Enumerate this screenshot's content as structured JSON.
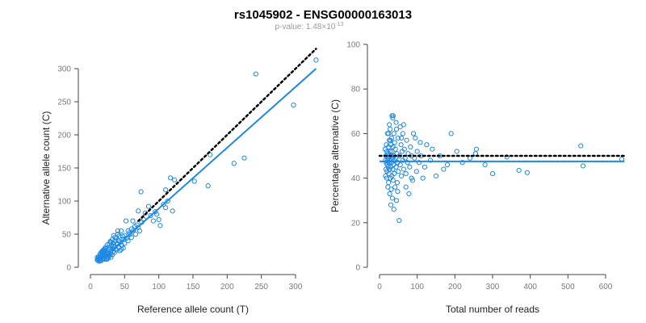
{
  "header": {
    "title": "rs1045902 - ENSG00000163013",
    "pvalue_prefix": "p-value: 1.48×10",
    "pvalue_exponent": "-13"
  },
  "colors": {
    "points": "#1e88e5",
    "fit": "#1e88e5",
    "reference": "#000000"
  },
  "chart_data": [
    {
      "type": "scatter",
      "xlabel": "Reference allele count (T)",
      "ylabel": "Alternative allele count (C)",
      "xlim": [
        0,
        330
      ],
      "ylim": [
        0,
        310
      ],
      "xticks": [
        0,
        50,
        100,
        150,
        200,
        250,
        300
      ],
      "yticks": [
        0,
        50,
        100,
        150,
        200,
        250,
        300
      ],
      "grid": false,
      "regression_line": {
        "x": [
          12,
          330
        ],
        "y": [
          8,
          300
        ]
      },
      "reference_line": {
        "x": [
          70,
          330
        ],
        "y": [
          70,
          330
        ],
        "style": "dotted"
      },
      "points": [
        [
          330,
          313
        ],
        [
          242,
          292
        ],
        [
          297,
          245
        ],
        [
          225,
          165
        ],
        [
          210,
          157
        ],
        [
          175,
          170
        ],
        [
          172,
          123
        ],
        [
          152,
          130
        ],
        [
          123,
          132
        ],
        [
          117,
          135
        ],
        [
          110,
          117
        ],
        [
          113,
          100
        ],
        [
          110,
          90
        ],
        [
          120,
          85
        ],
        [
          100,
          72
        ],
        [
          102,
          63
        ],
        [
          95,
          84
        ],
        [
          74,
          114
        ],
        [
          85,
          92
        ],
        [
          80,
          82
        ],
        [
          70,
          85
        ],
        [
          75,
          68
        ],
        [
          70,
          60
        ],
        [
          65,
          62
        ],
        [
          62,
          70
        ],
        [
          60,
          58
        ],
        [
          55,
          55
        ],
        [
          58,
          50
        ],
        [
          52,
          70
        ],
        [
          50,
          48
        ],
        [
          48,
          42
        ],
        [
          45,
          55
        ],
        [
          44,
          38
        ],
        [
          42,
          47
        ],
        [
          40,
          50
        ],
        [
          40,
          35
        ],
        [
          38,
          44
        ],
        [
          36,
          40
        ],
        [
          35,
          30
        ],
        [
          34,
          48
        ],
        [
          33,
          36
        ],
        [
          32,
          28
        ],
        [
          31,
          33
        ],
        [
          30,
          25
        ],
        [
          30,
          38
        ],
        [
          29,
          20
        ],
        [
          28,
          30
        ],
        [
          27,
          27
        ],
        [
          26,
          22
        ],
        [
          25,
          34
        ],
        [
          25,
          18
        ],
        [
          24,
          26
        ],
        [
          23,
          21
        ],
        [
          22,
          16
        ],
        [
          22,
          28
        ],
        [
          21,
          24
        ],
        [
          20,
          19
        ],
        [
          20,
          14
        ],
        [
          19,
          22
        ],
        [
          18,
          17
        ],
        [
          18,
          12
        ],
        [
          17,
          20
        ],
        [
          16,
          15
        ],
        [
          16,
          10
        ],
        [
          15,
          18
        ],
        [
          15,
          13
        ],
        [
          14,
          11
        ],
        [
          14,
          16
        ],
        [
          13,
          14
        ],
        [
          13,
          9
        ],
        [
          12,
          12
        ],
        [
          12,
          16
        ],
        [
          11,
          10
        ],
        [
          11,
          13
        ],
        [
          10,
          15
        ],
        [
          10,
          11
        ],
        [
          24,
          12
        ],
        [
          26,
          14
        ],
        [
          28,
          18
        ],
        [
          30,
          15
        ],
        [
          32,
          19
        ],
        [
          35,
          22
        ],
        [
          38,
          26
        ],
        [
          42,
          30
        ],
        [
          46,
          33
        ],
        [
          50,
          36
        ],
        [
          55,
          40
        ],
        [
          60,
          45
        ],
        [
          66,
          50
        ],
        [
          72,
          55
        ],
        [
          45,
          27
        ],
        [
          48,
          29
        ],
        [
          36,
          45
        ],
        [
          40,
          55
        ],
        [
          28,
          35
        ],
        [
          22,
          30
        ],
        [
          19,
          26
        ],
        [
          17,
          24
        ],
        [
          33,
          24
        ],
        [
          37,
          28
        ],
        [
          43,
          25
        ],
        [
          27,
          17
        ],
        [
          23,
          13
        ],
        [
          21,
          12
        ],
        [
          25,
          21
        ],
        [
          20,
          27
        ],
        [
          18,
          25
        ],
        [
          16,
          23
        ],
        [
          14,
          20
        ],
        [
          32,
          42
        ],
        [
          29,
          39
        ],
        [
          34,
          32
        ],
        [
          39,
          36
        ],
        [
          41,
          40
        ],
        [
          47,
          47
        ],
        [
          53,
          44
        ],
        [
          57,
          52
        ],
        [
          63,
          56
        ],
        [
          68,
          64
        ],
        [
          78,
          72
        ],
        [
          88,
          78
        ],
        [
          92,
          70
        ],
        [
          97,
          80
        ],
        [
          107,
          95
        ]
      ]
    },
    {
      "type": "scatter",
      "xlabel": "Total number of reads",
      "ylabel": "Percentage alternative (C)",
      "xlim": [
        0,
        650
      ],
      "ylim": [
        0,
        100
      ],
      "xticks": [
        0,
        100,
        200,
        300,
        400,
        500,
        600
      ],
      "yticks": [
        0,
        20,
        40,
        60,
        80,
        100
      ],
      "grid": false,
      "mean_line": {
        "y": 47.5
      },
      "reference_line": {
        "y": 50,
        "style": "dotted"
      },
      "points": [
        [
          643,
          48.5
        ],
        [
          534,
          54.5
        ],
        [
          540,
          45.5
        ],
        [
          392,
          42.5
        ],
        [
          370,
          43.5
        ],
        [
          338,
          49.5
        ],
        [
          300,
          42
        ],
        [
          280,
          46
        ],
        [
          257,
          53
        ],
        [
          255,
          51
        ],
        [
          240,
          49
        ],
        [
          220,
          47
        ],
        [
          205,
          52
        ],
        [
          190,
          60
        ],
        [
          180,
          46
        ],
        [
          170,
          44
        ],
        [
          160,
          50
        ],
        [
          150,
          41
        ],
        [
          140,
          53
        ],
        [
          135,
          48
        ],
        [
          125,
          55
        ],
        [
          120,
          45
        ],
        [
          115,
          40
        ],
        [
          110,
          50
        ],
        [
          108,
          56
        ],
        [
          105,
          47
        ],
        [
          100,
          52
        ],
        [
          98,
          43
        ],
        [
          95,
          58
        ],
        [
          93,
          49
        ],
        [
          90,
          60
        ],
        [
          88,
          39
        ],
        [
          85,
          50
        ],
        [
          82,
          54
        ],
        [
          80,
          45
        ],
        [
          78,
          33
        ],
        [
          76,
          51
        ],
        [
          74,
          47
        ],
        [
          72,
          57
        ],
        [
          70,
          42
        ],
        [
          68,
          49
        ],
        [
          66,
          53
        ],
        [
          64,
          44
        ],
        [
          62,
          48
        ],
        [
          60,
          52
        ],
        [
          58,
          41
        ],
        [
          57,
          55
        ],
        [
          55,
          46
        ],
        [
          53,
          50
        ],
        [
          52,
          21
        ],
        [
          50,
          43
        ],
        [
          49,
          58
        ],
        [
          48,
          47
        ],
        [
          47,
          38
        ],
        [
          46,
          51
        ],
        [
          45,
          62
        ],
        [
          44,
          45
        ],
        [
          43,
          49
        ],
        [
          42,
          53
        ],
        [
          41,
          36
        ],
        [
          40,
          48
        ],
        [
          40,
          56
        ],
        [
          39,
          42
        ],
        [
          38,
          50
        ],
        [
          38,
          60
        ],
        [
          37,
          46
        ],
        [
          36,
          39
        ],
        [
          36,
          54
        ],
        [
          35,
          44
        ],
        [
          35,
          67
        ],
        [
          34,
          49
        ],
        [
          34,
          31
        ],
        [
          33,
          52
        ],
        [
          33,
          41
        ],
        [
          32,
          47
        ],
        [
          32,
          58
        ],
        [
          31,
          35
        ],
        [
          31,
          50
        ],
        [
          30,
          45
        ],
        [
          30,
          55
        ],
        [
          30,
          28
        ],
        [
          29,
          48
        ],
        [
          29,
          40
        ],
        [
          28,
          52
        ],
        [
          28,
          62
        ],
        [
          27,
          44
        ],
        [
          27,
          33
        ],
        [
          26,
          50
        ],
        [
          26,
          57
        ],
        [
          25,
          42
        ],
        [
          25,
          47
        ],
        [
          24,
          54
        ],
        [
          24,
          38
        ],
        [
          23,
          49
        ],
        [
          23,
          45
        ],
        [
          22,
          51
        ],
        [
          22,
          36
        ],
        [
          21,
          48
        ],
        [
          21,
          60
        ],
        [
          20,
          43
        ],
        [
          20,
          46
        ],
        [
          19,
          52
        ],
        [
          19,
          40
        ],
        [
          18,
          47
        ],
        [
          18,
          55
        ],
        [
          17,
          44
        ],
        [
          17,
          50
        ],
        [
          16,
          41
        ],
        [
          16,
          48
        ],
        [
          15,
          53
        ],
        [
          36,
          68
        ],
        [
          33,
          68
        ],
        [
          44,
          65
        ],
        [
          55,
          63
        ],
        [
          62,
          60
        ],
        [
          70,
          36
        ],
        [
          85,
          40
        ],
        [
          45,
          30
        ],
        [
          38,
          26
        ],
        [
          48,
          34
        ],
        [
          58,
          58
        ],
        [
          64,
          64
        ],
        [
          26,
          64
        ],
        [
          24,
          60
        ],
        [
          29,
          57
        ]
      ]
    }
  ]
}
